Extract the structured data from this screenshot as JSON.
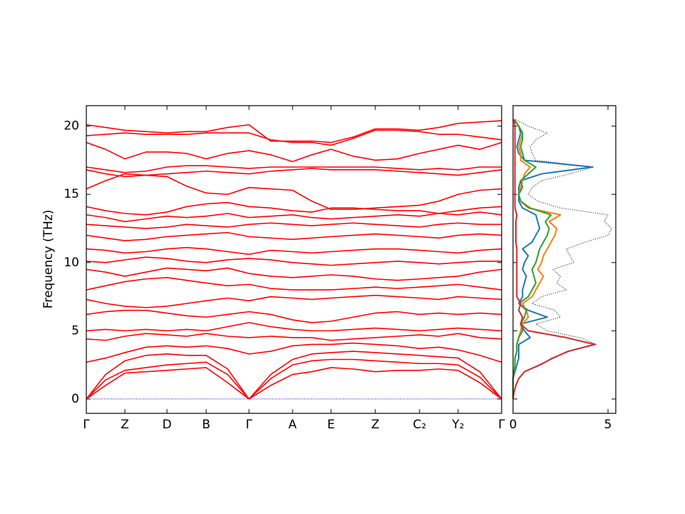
{
  "chart_data": [
    {
      "type": "line",
      "ylabel": "Frequency (THz)",
      "color": "#ff0000",
      "zero_line_color": "#0000ff",
      "xlim": [
        0,
        5.82
      ],
      "ylim": [
        -1.05,
        21.5
      ],
      "yticks": [
        0,
        5,
        10,
        15,
        20
      ],
      "xticks": [
        {
          "value": 0,
          "label": "Γ"
        },
        {
          "value": 0.54,
          "label": "Z"
        },
        {
          "value": 1.13,
          "label": "D"
        },
        {
          "value": 1.68,
          "label": "B"
        },
        {
          "value": 2.28,
          "label": "Γ"
        },
        {
          "value": 2.89,
          "label": "A"
        },
        {
          "value": 3.43,
          "label": "E"
        },
        {
          "value": 4.05,
          "label": "Z"
        },
        {
          "value": 4.67,
          "label": "C₂"
        },
        {
          "value": 5.21,
          "label": "Y₂"
        },
        {
          "value": 5.82,
          "label": "Γ"
        }
      ],
      "x": [
        0,
        0.27,
        0.54,
        0.835,
        1.13,
        1.405,
        1.68,
        1.98,
        2.28,
        2.585,
        2.89,
        3.16,
        3.43,
        3.74,
        4.05,
        4.36,
        4.67,
        4.94,
        5.21,
        5.515,
        5.82
      ],
      "series": [
        {
          "values": [
            0,
            1.0,
            1.9,
            2.0,
            2.1,
            2.2,
            2.3,
            1.2,
            0,
            1.0,
            1.8,
            2.0,
            2.3,
            2.2,
            2.0,
            2.1,
            2.1,
            2.2,
            2.1,
            1.2,
            0
          ]
        },
        {
          "values": [
            0,
            1.4,
            2.1,
            2.3,
            2.5,
            2.6,
            2.7,
            1.8,
            0,
            1.5,
            2.5,
            2.8,
            2.9,
            2.9,
            2.8,
            2.7,
            2.6,
            2.6,
            2.5,
            1.6,
            0
          ]
        },
        {
          "values": [
            0,
            1.8,
            2.8,
            3.2,
            3.3,
            3.2,
            3.2,
            2.2,
            0,
            1.8,
            2.9,
            3.3,
            3.4,
            3.5,
            3.4,
            3.3,
            3.2,
            3.1,
            3.0,
            2.0,
            0
          ]
        },
        {
          "values": [
            2.7,
            3.0,
            3.4,
            3.8,
            3.9,
            3.8,
            3.9,
            3.7,
            3.3,
            3.5,
            3.9,
            4.0,
            4.0,
            4.1,
            4.0,
            3.9,
            3.7,
            3.8,
            3.6,
            3.2,
            2.7
          ]
        },
        {
          "values": [
            4.4,
            4.3,
            4.6,
            4.8,
            4.7,
            4.6,
            4.8,
            4.6,
            4.5,
            4.6,
            4.5,
            4.5,
            4.3,
            4.4,
            4.5,
            4.6,
            4.7,
            4.6,
            4.8,
            4.5,
            4.4
          ]
        },
        {
          "values": [
            5.0,
            5.1,
            5.0,
            5.1,
            5.0,
            5.1,
            5.0,
            5.3,
            5.6,
            5.3,
            5.1,
            5.0,
            5.0,
            5.1,
            5.2,
            5.1,
            5.0,
            5.1,
            5.2,
            5.1,
            5.0
          ]
        },
        {
          "values": [
            6.2,
            6.4,
            6.5,
            6.5,
            6.3,
            6.1,
            6.0,
            6.2,
            6.4,
            6.2,
            5.8,
            5.6,
            5.7,
            6.0,
            6.3,
            6.4,
            6.2,
            6.3,
            6.2,
            6.3,
            6.2
          ]
        },
        {
          "values": [
            7.3,
            7.0,
            6.8,
            6.7,
            6.8,
            7.0,
            7.2,
            7.4,
            7.2,
            7.5,
            7.4,
            7.3,
            7.4,
            7.5,
            7.6,
            7.5,
            7.4,
            7.3,
            7.5,
            7.4,
            7.3
          ]
        },
        {
          "values": [
            8.0,
            8.3,
            8.6,
            8.8,
            8.9,
            8.7,
            8.5,
            8.3,
            8.4,
            8.1,
            8.0,
            8.0,
            8.0,
            8.1,
            8.2,
            8.1,
            8.2,
            8.3,
            8.4,
            8.2,
            8.0
          ]
        },
        {
          "values": [
            9.5,
            9.3,
            9.0,
            9.3,
            9.6,
            9.5,
            9.4,
            9.6,
            9.2,
            9.0,
            8.9,
            9.0,
            9.1,
            9.0,
            8.8,
            8.7,
            8.8,
            8.9,
            9.0,
            9.3,
            9.5
          ]
        },
        {
          "values": [
            10.1,
            10.0,
            10.2,
            10.4,
            10.3,
            10.1,
            10.0,
            10.2,
            10.3,
            10.2,
            10.0,
            9.9,
            9.8,
            9.9,
            10.0,
            10.1,
            10.0,
            9.9,
            10.0,
            10.1,
            10.1
          ]
        },
        {
          "values": [
            11.0,
            10.9,
            10.7,
            10.8,
            11.0,
            11.1,
            11.0,
            10.8,
            10.6,
            10.9,
            10.8,
            10.7,
            10.8,
            10.9,
            11.0,
            11.0,
            10.9,
            10.8,
            10.7,
            10.9,
            11.0
          ]
        },
        {
          "values": [
            12.0,
            11.8,
            11.6,
            11.7,
            11.9,
            12.0,
            12.1,
            12.2,
            11.9,
            11.8,
            11.7,
            11.8,
            11.9,
            12.0,
            12.1,
            12.0,
            11.9,
            11.8,
            12.0,
            12.1,
            12.0
          ]
        },
        {
          "values": [
            12.8,
            12.7,
            12.6,
            12.5,
            12.6,
            12.8,
            12.7,
            12.6,
            12.8,
            12.9,
            12.8,
            12.7,
            12.8,
            12.9,
            12.8,
            12.7,
            12.6,
            12.8,
            12.9,
            12.8,
            12.8
          ]
        },
        {
          "values": [
            13.5,
            13.3,
            13.0,
            13.2,
            13.4,
            13.3,
            13.4,
            13.6,
            13.3,
            13.4,
            13.5,
            13.3,
            13.2,
            13.3,
            13.4,
            13.5,
            13.4,
            13.6,
            13.5,
            13.7,
            13.5
          ]
        },
        {
          "values": [
            14.1,
            13.8,
            13.6,
            13.5,
            13.7,
            14.1,
            14.3,
            14.4,
            14.1,
            14.0,
            13.8,
            13.7,
            14.0,
            14.0,
            13.9,
            13.8,
            13.8,
            13.6,
            13.8,
            14.0,
            14.1
          ]
        },
        {
          "values": [
            15.4,
            16.0,
            16.5,
            16.4,
            16.3,
            15.6,
            15.1,
            15.0,
            15.5,
            15.4,
            15.3,
            14.5,
            13.9,
            13.9,
            14.0,
            14.1,
            14.2,
            14.5,
            15.0,
            15.3,
            15.4
          ]
        },
        {
          "values": [
            16.8,
            16.5,
            16.3,
            16.4,
            16.5,
            16.6,
            16.7,
            16.6,
            16.5,
            16.7,
            16.8,
            16.9,
            16.8,
            16.8,
            16.8,
            16.7,
            16.6,
            16.5,
            16.4,
            16.6,
            16.8
          ]
        },
        {
          "values": [
            17.0,
            16.8,
            16.6,
            16.7,
            17.0,
            17.1,
            17.1,
            17.0,
            16.9,
            17.0,
            17.0,
            17.0,
            17.0,
            17.0,
            17.0,
            16.9,
            16.8,
            16.9,
            16.8,
            17.0,
            17.0
          ]
        },
        {
          "values": [
            18.8,
            18.3,
            17.6,
            18.1,
            18.1,
            18.0,
            17.6,
            18.0,
            18.2,
            17.9,
            17.4,
            17.9,
            18.3,
            17.8,
            17.5,
            17.6,
            18.0,
            18.3,
            18.6,
            18.3,
            18.8
          ]
        },
        {
          "values": [
            19.3,
            19.4,
            19.5,
            19.4,
            19.4,
            19.4,
            19.5,
            19.5,
            19.5,
            19.0,
            18.8,
            18.8,
            18.6,
            19.1,
            19.7,
            19.7,
            19.6,
            19.4,
            19.4,
            19.2,
            19.0
          ]
        },
        {
          "values": [
            20.1,
            19.9,
            19.7,
            19.6,
            19.5,
            19.6,
            19.6,
            19.9,
            20.1,
            18.9,
            18.9,
            18.9,
            18.8,
            19.2,
            19.8,
            19.8,
            19.7,
            19.9,
            20.2,
            20.3,
            20.4
          ]
        }
      ]
    },
    {
      "type": "line",
      "orientation": "horizontal",
      "xlim": [
        0,
        5.41
      ],
      "xticks": [
        0,
        5
      ],
      "ylim": [
        -1.05,
        21.5
      ],
      "yticks": [
        0,
        5,
        10,
        15,
        20
      ],
      "y": [
        0,
        0.5,
        1,
        1.5,
        2,
        2.5,
        3,
        3.5,
        4,
        4.5,
        5,
        5.5,
        6,
        6.5,
        7,
        7.5,
        8,
        8.5,
        9,
        9.5,
        10,
        10.5,
        11,
        11.5,
        12,
        12.5,
        13,
        13.5,
        14,
        14.5,
        15,
        15.5,
        16,
        16.5,
        17,
        17.5,
        18,
        18.5,
        19,
        19.5,
        20,
        20.5
      ],
      "series": [
        {
          "color": "#000000",
          "dash": "dotted",
          "values": [
            0,
            0.05,
            0.15,
            0.3,
            0.6,
            1.5,
            2.0,
            3.0,
            4.4,
            3.5,
            1.8,
            1.2,
            2.5,
            2.2,
            1.0,
            1.5,
            2.8,
            2.3,
            2.5,
            2.1,
            3.2,
            3.0,
            2.8,
            3.8,
            5.0,
            5.2,
            4.8,
            5.0,
            2.5,
            1.3,
            0.8,
            1.0,
            1.5,
            3.0,
            4.2,
            1.2,
            1.0,
            0.9,
            1.2,
            1.8,
            0.8,
            0.1
          ]
        },
        {
          "color": "#1f77b4",
          "values": [
            0,
            0,
            0,
            0,
            0.1,
            0.2,
            0.3,
            0.3,
            0.3,
            0.9,
            0.6,
            0.4,
            1.8,
            0.8,
            0.3,
            0.5,
            0.5,
            0.6,
            0.7,
            0.5,
            0.6,
            0.8,
            0.5,
            1.0,
            1.2,
            1.4,
            1.3,
            1.2,
            0.5,
            0.3,
            0.3,
            0.3,
            0.4,
            1.5,
            4.2,
            0.6,
            0.3,
            0.2,
            0.3,
            0.4,
            0.3,
            0.05
          ]
        },
        {
          "color": "#ff7f0e",
          "values": [
            0,
            0,
            0,
            0,
            0.05,
            0.1,
            0.1,
            0.2,
            0.2,
            0.3,
            0.4,
            0.5,
            0.8,
            0.7,
            0.5,
            1.0,
            1.2,
            1.4,
            1.6,
            1.3,
            1.5,
            1.6,
            1.8,
            2.0,
            2.2,
            2.3,
            1.9,
            2.5,
            0.8,
            0.4,
            0.3,
            0.4,
            0.5,
            0.6,
            0.9,
            0.4,
            0.4,
            0.3,
            0.4,
            0.5,
            0.3,
            0.05
          ]
        },
        {
          "color": "#2ca02c",
          "values": [
            0,
            0,
            0,
            0,
            0.05,
            0.1,
            0.1,
            0.2,
            0.2,
            0.3,
            0.5,
            0.4,
            0.6,
            0.7,
            0.3,
            0.8,
            1.0,
            1.2,
            1.1,
            1.0,
            1.2,
            1.3,
            1.4,
            1.6,
            1.8,
            1.9,
            1.7,
            2.0,
            0.9,
            0.4,
            0.3,
            0.5,
            0.4,
            0.8,
            1.2,
            0.6,
            0.5,
            0.4,
            0.5,
            0.5,
            0.3,
            0.05
          ]
        },
        {
          "color": "#d62728",
          "values": [
            0,
            0.05,
            0.15,
            0.3,
            0.6,
            1.4,
            2.1,
            2.9,
            4.3,
            2.8,
            0.8,
            0.4,
            0.5,
            0.3,
            0.4,
            0.2,
            0.2,
            0.2,
            0.2,
            0.2,
            0.2,
            0.2,
            0.2,
            0.15,
            0.15,
            0.15,
            0.15,
            0.2,
            0.1,
            0.1,
            0.1,
            0.1,
            0.1,
            0.1,
            0.1,
            0.1,
            0.1,
            0.1,
            0.1,
            0.1,
            0.1,
            0.05
          ]
        }
      ]
    }
  ]
}
